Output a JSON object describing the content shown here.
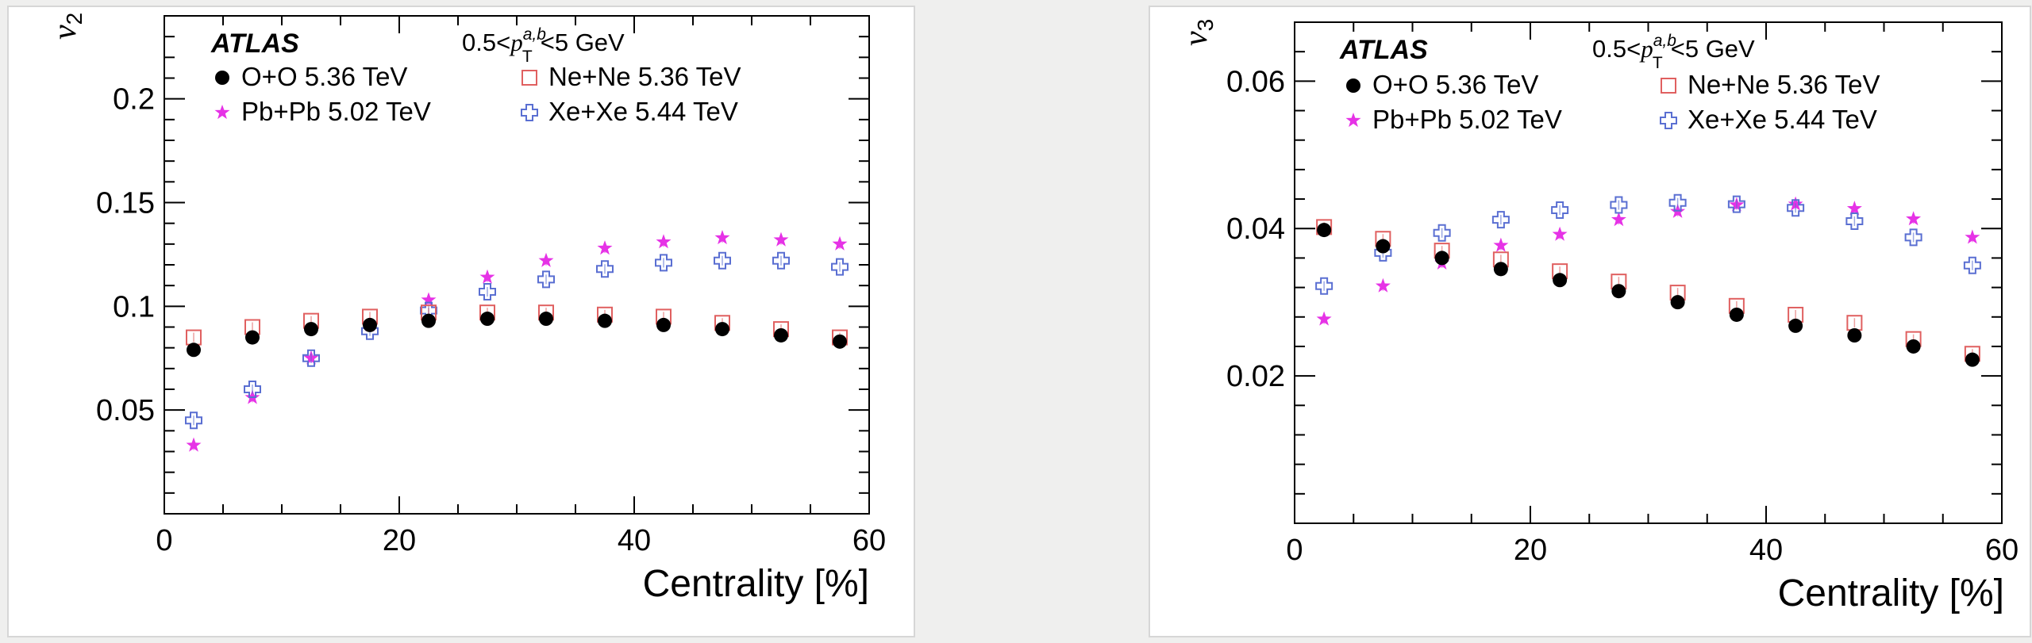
{
  "colors": {
    "OO": "#000000",
    "NeNe": "#e06060",
    "PbPb": "#e632e6",
    "XeXe": "#5a6fd2"
  },
  "series_meta": [
    {
      "key": "OO",
      "marker": "filled-circle",
      "label": "O+O  5.36 TeV"
    },
    {
      "key": "NeNe",
      "marker": "open-square",
      "label": "Ne+Ne  5.36 TeV"
    },
    {
      "key": "PbPb",
      "marker": "star",
      "label": "Pb+Pb  5.02 TeV"
    },
    {
      "key": "XeXe",
      "marker": "open-cross",
      "label": "Xe+Xe  5.44 TeV"
    }
  ],
  "chart_data": [
    {
      "type": "scatter",
      "experiment": "ATLAS",
      "kinematic_cut": {
        "prefix": "0.5<",
        "var": "p",
        "sub": "T",
        "sup": "a,b",
        "suffix": "<5 GeV"
      },
      "xlabel": "Centrality [%]",
      "ylabel": {
        "main": "v",
        "sub": "2"
      },
      "xlim": [
        0,
        60
      ],
      "ylim": [
        0,
        0.24
      ],
      "xticks": [
        0,
        20,
        40,
        60
      ],
      "yticks": [
        0.05,
        0.1,
        0.15,
        0.2
      ],
      "ytick_labels": [
        "0.05",
        "0.1",
        "0.15",
        "0.2"
      ],
      "x": [
        2.5,
        7.5,
        12.5,
        17.5,
        22.5,
        27.5,
        32.5,
        37.5,
        42.5,
        47.5,
        52.5,
        57.5
      ],
      "series": [
        {
          "name": "O+O  5.36 TeV",
          "values": [
            0.079,
            0.085,
            0.089,
            0.091,
            0.093,
            0.094,
            0.094,
            0.093,
            0.091,
            0.089,
            0.086,
            0.083
          ]
        },
        {
          "name": "Ne+Ne  5.36 TeV",
          "values": [
            0.085,
            0.09,
            0.093,
            0.095,
            0.097,
            0.097,
            0.097,
            0.096,
            0.095,
            0.092,
            0.089,
            0.085
          ]
        },
        {
          "name": "Pb+Pb  5.02 TeV",
          "values": [
            0.033,
            0.056,
            0.075,
            0.091,
            0.103,
            0.114,
            0.122,
            0.128,
            0.131,
            0.133,
            0.132,
            0.13
          ]
        },
        {
          "name": "Xe+Xe  5.44 TeV",
          "values": [
            0.045,
            0.06,
            0.075,
            0.088,
            0.098,
            0.107,
            0.113,
            0.118,
            0.121,
            0.122,
            0.122,
            0.119
          ]
        }
      ]
    },
    {
      "type": "scatter",
      "experiment": "ATLAS",
      "kinematic_cut": {
        "prefix": "0.5<",
        "var": "p",
        "sub": "T",
        "sup": "a,b",
        "suffix": "<5 GeV"
      },
      "xlabel": "Centrality [%]",
      "ylabel": {
        "main": "v",
        "sub": "3"
      },
      "xlim": [
        0,
        60
      ],
      "ylim": [
        0,
        0.068
      ],
      "xticks": [
        0,
        20,
        40,
        60
      ],
      "yticks": [
        0.02,
        0.04,
        0.06
      ],
      "ytick_labels": [
        "0.02",
        "0.04",
        "0.06"
      ],
      "x": [
        2.5,
        7.5,
        12.5,
        17.5,
        22.5,
        27.5,
        32.5,
        37.5,
        42.5,
        47.5,
        52.5,
        57.5
      ],
      "series": [
        {
          "name": "O+O  5.36 TeV",
          "values": [
            0.0398,
            0.0376,
            0.036,
            0.0345,
            0.033,
            0.0315,
            0.03,
            0.0283,
            0.0268,
            0.0255,
            0.024,
            0.0222
          ]
        },
        {
          "name": "Ne+Ne  5.36 TeV",
          "values": [
            0.0402,
            0.0386,
            0.037,
            0.0358,
            0.0342,
            0.0328,
            0.0313,
            0.0295,
            0.0283,
            0.0272,
            0.025,
            0.023
          ]
        },
        {
          "name": "Pb+Pb  5.02 TeV",
          "values": [
            0.0277,
            0.0322,
            0.0353,
            0.0377,
            0.0392,
            0.0412,
            0.0423,
            0.0432,
            0.0433,
            0.0427,
            0.0413,
            0.0388
          ]
        },
        {
          "name": "Xe+Xe  5.44 TeV",
          "values": [
            0.0322,
            0.0367,
            0.0394,
            0.0412,
            0.0425,
            0.0432,
            0.0435,
            0.0433,
            0.0428,
            0.041,
            0.0388,
            0.035
          ]
        }
      ]
    }
  ]
}
